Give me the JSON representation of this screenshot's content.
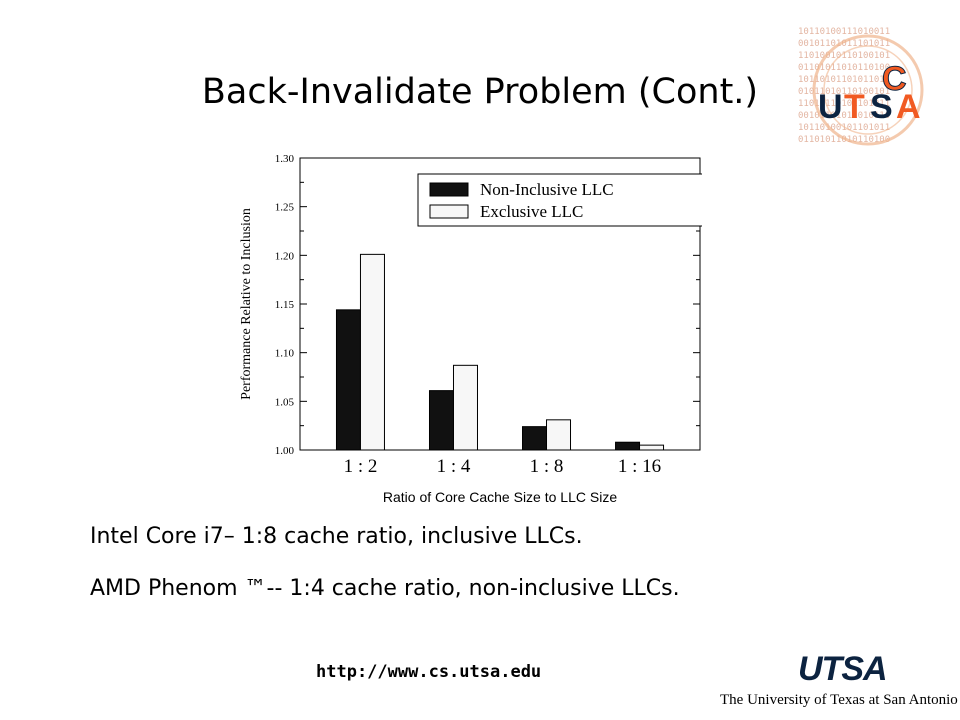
{
  "slide": {
    "title": "Back-Invalidate Problem (Cont.)",
    "bullets": [
      "Intel Core i7– 1:8 cache ratio, inclusive LLCs.",
      "AMD Phenom ™-- 1:4 cache ratio, non-inclusive LLCs."
    ],
    "footer_url": "http://www.cs.utsa.edu",
    "logo_word": "UTSA",
    "logo_subtitle": "The University of Texas at San Antonio",
    "colors": {
      "utsa_blue": "#0c2340",
      "utsa_orange": "#f15a22"
    }
  },
  "chart_data": {
    "type": "bar",
    "xlabel": "Ratio of Core Cache Size to LLC Size",
    "ylabel": "Performance Relative to Inclusion",
    "categories": [
      "1 : 2",
      "1 : 4",
      "1 : 8",
      "1 : 16"
    ],
    "ylim": [
      1.0,
      1.3
    ],
    "yticks": [
      "1.00",
      "1.05",
      "1.10",
      "1.15",
      "1.20",
      "1.25",
      "1.30"
    ],
    "legend_position": "top-right",
    "grid": false,
    "series": [
      {
        "name": "Non-Inclusive LLC",
        "color": "#111111",
        "values": [
          1.144,
          1.061,
          1.024,
          1.008
        ]
      },
      {
        "name": "Exclusive LLC",
        "color": "#f7f7f7",
        "values": [
          1.201,
          1.087,
          1.031,
          1.005
        ]
      }
    ]
  }
}
